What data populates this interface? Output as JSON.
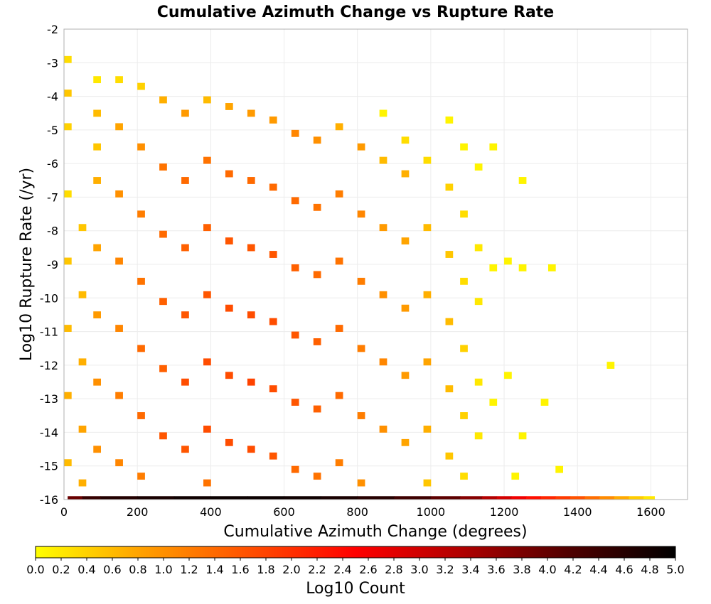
{
  "chart_data": {
    "type": "heatmap",
    "title": "Cumulative Azimuth Change vs Rupture Rate",
    "xlabel": "Cumulative Azimuth Change (degrees)",
    "ylabel": "Log10 Rupture Rate (/yr)",
    "colorbar_label": "Log10 Count",
    "xlim": [
      0,
      1700
    ],
    "ylim": [
      -16,
      -2
    ],
    "x_ticks": [
      0,
      200,
      400,
      600,
      800,
      1000,
      1200,
      1400,
      1600
    ],
    "y_ticks": [
      -16,
      -15,
      -14,
      -13,
      -12,
      -11,
      -10,
      -9,
      -8,
      -7,
      -6,
      -5,
      -4,
      -3,
      -2
    ],
    "colorbar_range": [
      0,
      5
    ],
    "colorbar_ticks": [
      "0.0",
      "0.2",
      "0.4",
      "0.6",
      "0.8",
      "1.0",
      "1.2",
      "1.4",
      "1.6",
      "1.8",
      "2.0",
      "2.2",
      "2.4",
      "2.6",
      "2.8",
      "3.0",
      "3.2",
      "3.4",
      "3.6",
      "3.8",
      "4.0",
      "4.2",
      "4.4",
      "4.6",
      "4.8",
      "5.0"
    ],
    "colorscale": [
      "#ffff00",
      "#ffa000",
      "#ff5000",
      "#ff0000",
      "#b00000",
      "#500000",
      "#000000"
    ],
    "grid": true,
    "bin_width_x": 20,
    "bin_height_y": 0.2,
    "cells": [
      {
        "x": 10,
        "y": -2.9,
        "v": 0.3
      },
      {
        "x": 10,
        "y": -3.9,
        "v": 0.5
      },
      {
        "x": 10,
        "y": -4.9,
        "v": 0.4
      },
      {
        "x": 10,
        "y": -6.9,
        "v": 0.3
      },
      {
        "x": 10,
        "y": -8.9,
        "v": 0.5
      },
      {
        "x": 10,
        "y": -10.9,
        "v": 0.6
      },
      {
        "x": 10,
        "y": -12.9,
        "v": 0.7
      },
      {
        "x": 10,
        "y": -14.9,
        "v": 0.6
      },
      {
        "x": 50,
        "y": -7.9,
        "v": 0.5
      },
      {
        "x": 50,
        "y": -9.9,
        "v": 0.6
      },
      {
        "x": 50,
        "y": -11.9,
        "v": 0.7
      },
      {
        "x": 50,
        "y": -13.9,
        "v": 0.8
      },
      {
        "x": 50,
        "y": -15.5,
        "v": 0.7
      },
      {
        "x": 90,
        "y": -3.5,
        "v": 0.2
      },
      {
        "x": 90,
        "y": -4.5,
        "v": 0.6
      },
      {
        "x": 90,
        "y": -5.5,
        "v": 0.5
      },
      {
        "x": 90,
        "y": -6.5,
        "v": 0.7
      },
      {
        "x": 90,
        "y": -8.5,
        "v": 0.8
      },
      {
        "x": 90,
        "y": -10.5,
        "v": 0.9
      },
      {
        "x": 90,
        "y": -12.5,
        "v": 1.0
      },
      {
        "x": 90,
        "y": -14.5,
        "v": 1.0
      },
      {
        "x": 150,
        "y": -3.5,
        "v": 0.3
      },
      {
        "x": 150,
        "y": -4.9,
        "v": 0.8
      },
      {
        "x": 150,
        "y": -6.9,
        "v": 1.0
      },
      {
        "x": 150,
        "y": -8.9,
        "v": 1.1
      },
      {
        "x": 150,
        "y": -10.9,
        "v": 1.1
      },
      {
        "x": 150,
        "y": -12.9,
        "v": 1.2
      },
      {
        "x": 150,
        "y": -14.9,
        "v": 1.1
      },
      {
        "x": 210,
        "y": -3.7,
        "v": 0.4
      },
      {
        "x": 210,
        "y": -5.5,
        "v": 1.0
      },
      {
        "x": 210,
        "y": -7.5,
        "v": 1.2
      },
      {
        "x": 210,
        "y": -9.5,
        "v": 1.3
      },
      {
        "x": 210,
        "y": -11.5,
        "v": 1.4
      },
      {
        "x": 210,
        "y": -13.5,
        "v": 1.4
      },
      {
        "x": 210,
        "y": -15.3,
        "v": 1.2
      },
      {
        "x": 270,
        "y": -4.1,
        "v": 0.7
      },
      {
        "x": 270,
        "y": -6.1,
        "v": 1.3
      },
      {
        "x": 270,
        "y": -8.1,
        "v": 1.4
      },
      {
        "x": 270,
        "y": -10.1,
        "v": 1.5
      },
      {
        "x": 270,
        "y": -12.1,
        "v": 1.5
      },
      {
        "x": 270,
        "y": -14.1,
        "v": 1.6
      },
      {
        "x": 330,
        "y": -4.5,
        "v": 0.9
      },
      {
        "x": 330,
        "y": -6.5,
        "v": 1.4
      },
      {
        "x": 330,
        "y": -8.5,
        "v": 1.5
      },
      {
        "x": 330,
        "y": -10.5,
        "v": 1.6
      },
      {
        "x": 330,
        "y": -12.5,
        "v": 1.7
      },
      {
        "x": 330,
        "y": -14.5,
        "v": 1.6
      },
      {
        "x": 390,
        "y": -4.1,
        "v": 0.6
      },
      {
        "x": 390,
        "y": -5.9,
        "v": 1.3
      },
      {
        "x": 390,
        "y": -7.9,
        "v": 1.5
      },
      {
        "x": 390,
        "y": -9.9,
        "v": 1.6
      },
      {
        "x": 390,
        "y": -11.9,
        "v": 1.7
      },
      {
        "x": 390,
        "y": -13.9,
        "v": 1.7
      },
      {
        "x": 390,
        "y": -15.5,
        "v": 1.3
      },
      {
        "x": 450,
        "y": -4.3,
        "v": 0.8
      },
      {
        "x": 450,
        "y": -6.3,
        "v": 1.4
      },
      {
        "x": 450,
        "y": -8.3,
        "v": 1.6
      },
      {
        "x": 450,
        "y": -10.3,
        "v": 1.7
      },
      {
        "x": 450,
        "y": -12.3,
        "v": 1.7
      },
      {
        "x": 450,
        "y": -14.3,
        "v": 1.7
      },
      {
        "x": 510,
        "y": -4.5,
        "v": 0.9
      },
      {
        "x": 510,
        "y": -6.5,
        "v": 1.4
      },
      {
        "x": 510,
        "y": -8.5,
        "v": 1.6
      },
      {
        "x": 510,
        "y": -10.5,
        "v": 1.7
      },
      {
        "x": 510,
        "y": -12.5,
        "v": 1.8
      },
      {
        "x": 510,
        "y": -14.5,
        "v": 1.7
      },
      {
        "x": 570,
        "y": -4.7,
        "v": 0.9
      },
      {
        "x": 570,
        "y": -6.7,
        "v": 1.4
      },
      {
        "x": 570,
        "y": -8.7,
        "v": 1.6
      },
      {
        "x": 570,
        "y": -10.7,
        "v": 1.7
      },
      {
        "x": 570,
        "y": -12.7,
        "v": 1.7
      },
      {
        "x": 570,
        "y": -14.7,
        "v": 1.6
      },
      {
        "x": 630,
        "y": -5.1,
        "v": 1.1
      },
      {
        "x": 630,
        "y": -7.1,
        "v": 1.4
      },
      {
        "x": 630,
        "y": -9.1,
        "v": 1.5
      },
      {
        "x": 630,
        "y": -11.1,
        "v": 1.6
      },
      {
        "x": 630,
        "y": -13.1,
        "v": 1.6
      },
      {
        "x": 630,
        "y": -15.1,
        "v": 1.4
      },
      {
        "x": 690,
        "y": -5.3,
        "v": 1.0
      },
      {
        "x": 690,
        "y": -7.3,
        "v": 1.3
      },
      {
        "x": 690,
        "y": -9.3,
        "v": 1.4
      },
      {
        "x": 690,
        "y": -11.3,
        "v": 1.5
      },
      {
        "x": 690,
        "y": -13.3,
        "v": 1.5
      },
      {
        "x": 690,
        "y": -15.3,
        "v": 1.3
      },
      {
        "x": 750,
        "y": -4.9,
        "v": 0.7
      },
      {
        "x": 750,
        "y": -6.9,
        "v": 1.2
      },
      {
        "x": 750,
        "y": -8.9,
        "v": 1.3
      },
      {
        "x": 750,
        "y": -10.9,
        "v": 1.4
      },
      {
        "x": 750,
        "y": -12.9,
        "v": 1.4
      },
      {
        "x": 750,
        "y": -14.9,
        "v": 1.2
      },
      {
        "x": 810,
        "y": -5.5,
        "v": 0.9
      },
      {
        "x": 810,
        "y": -7.5,
        "v": 1.1
      },
      {
        "x": 810,
        "y": -9.5,
        "v": 1.2
      },
      {
        "x": 810,
        "y": -11.5,
        "v": 1.2
      },
      {
        "x": 810,
        "y": -13.5,
        "v": 1.2
      },
      {
        "x": 810,
        "y": -15.5,
        "v": 1.0
      },
      {
        "x": 870,
        "y": -4.5,
        "v": 0.1
      },
      {
        "x": 870,
        "y": -5.9,
        "v": 0.6
      },
      {
        "x": 870,
        "y": -7.9,
        "v": 0.9
      },
      {
        "x": 870,
        "y": -9.9,
        "v": 1.0
      },
      {
        "x": 870,
        "y": -11.9,
        "v": 1.1
      },
      {
        "x": 870,
        "y": -13.9,
        "v": 1.0
      },
      {
        "x": 930,
        "y": -5.3,
        "v": 0.3
      },
      {
        "x": 930,
        "y": -6.3,
        "v": 0.7
      },
      {
        "x": 930,
        "y": -8.3,
        "v": 0.8
      },
      {
        "x": 930,
        "y": -10.3,
        "v": 0.9
      },
      {
        "x": 930,
        "y": -12.3,
        "v": 0.9
      },
      {
        "x": 930,
        "y": -14.3,
        "v": 0.8
      },
      {
        "x": 990,
        "y": -5.9,
        "v": 0.3
      },
      {
        "x": 990,
        "y": -7.9,
        "v": 0.6
      },
      {
        "x": 990,
        "y": -9.9,
        "v": 0.7
      },
      {
        "x": 990,
        "y": -11.9,
        "v": 0.8
      },
      {
        "x": 990,
        "y": -13.9,
        "v": 0.7
      },
      {
        "x": 990,
        "y": -15.5,
        "v": 0.5
      },
      {
        "x": 1050,
        "y": -4.7,
        "v": 0.1
      },
      {
        "x": 1050,
        "y": -6.7,
        "v": 0.4
      },
      {
        "x": 1050,
        "y": -8.7,
        "v": 0.5
      },
      {
        "x": 1050,
        "y": -10.7,
        "v": 0.6
      },
      {
        "x": 1050,
        "y": -12.7,
        "v": 0.6
      },
      {
        "x": 1050,
        "y": -14.7,
        "v": 0.5
      },
      {
        "x": 1090,
        "y": -5.5,
        "v": 0.1
      },
      {
        "x": 1090,
        "y": -7.5,
        "v": 0.3
      },
      {
        "x": 1090,
        "y": -9.5,
        "v": 0.3
      },
      {
        "x": 1090,
        "y": -11.5,
        "v": 0.4
      },
      {
        "x": 1090,
        "y": -13.5,
        "v": 0.4
      },
      {
        "x": 1090,
        "y": -15.3,
        "v": 0.3
      },
      {
        "x": 1130,
        "y": -6.1,
        "v": 0.1
      },
      {
        "x": 1130,
        "y": -8.5,
        "v": 0.2
      },
      {
        "x": 1130,
        "y": -10.1,
        "v": 0.2
      },
      {
        "x": 1130,
        "y": -12.5,
        "v": 0.2
      },
      {
        "x": 1130,
        "y": -14.1,
        "v": 0.2
      },
      {
        "x": 1170,
        "y": -5.5,
        "v": 0.1
      },
      {
        "x": 1170,
        "y": -9.1,
        "v": 0.1
      },
      {
        "x": 1170,
        "y": -13.1,
        "v": 0.1
      },
      {
        "x": 1210,
        "y": -8.9,
        "v": 0.1
      },
      {
        "x": 1210,
        "y": -12.3,
        "v": 0.1
      },
      {
        "x": 1230,
        "y": -15.3,
        "v": 0.1
      },
      {
        "x": 1250,
        "y": -6.5,
        "v": 0.1
      },
      {
        "x": 1250,
        "y": -9.1,
        "v": 0.1
      },
      {
        "x": 1250,
        "y": -14.1,
        "v": 0.1
      },
      {
        "x": 1310,
        "y": -13.1,
        "v": 0.1
      },
      {
        "x": 1330,
        "y": -9.1,
        "v": 0.1
      },
      {
        "x": 1350,
        "y": -15.1,
        "v": 0.1
      },
      {
        "x": 1490,
        "y": -12.0,
        "v": 0.1
      }
    ],
    "bottom_row": {
      "y": -16.0,
      "values": [
        {
          "x": 10,
          "v": 3.6
        },
        {
          "x": 50,
          "v": 4.3
        },
        {
          "x": 100,
          "v": 4.6
        },
        {
          "x": 200,
          "v": 4.7
        },
        {
          "x": 300,
          "v": 4.8
        },
        {
          "x": 400,
          "v": 4.9
        },
        {
          "x": 500,
          "v": 4.9
        },
        {
          "x": 600,
          "v": 4.9
        },
        {
          "x": 700,
          "v": 4.8
        },
        {
          "x": 800,
          "v": 4.7
        },
        {
          "x": 900,
          "v": 4.5
        },
        {
          "x": 1000,
          "v": 4.2
        },
        {
          "x": 1080,
          "v": 3.9
        },
        {
          "x": 1140,
          "v": 3.5
        },
        {
          "x": 1180,
          "v": 3.1
        },
        {
          "x": 1220,
          "v": 2.8
        },
        {
          "x": 1260,
          "v": 2.5
        },
        {
          "x": 1300,
          "v": 2.2
        },
        {
          "x": 1340,
          "v": 2.0
        },
        {
          "x": 1380,
          "v": 1.8
        },
        {
          "x": 1420,
          "v": 1.5
        },
        {
          "x": 1460,
          "v": 1.2
        },
        {
          "x": 1500,
          "v": 0.9
        },
        {
          "x": 1540,
          "v": 0.6
        },
        {
          "x": 1580,
          "v": 0.3
        },
        {
          "x": 1610,
          "v": 0.1
        }
      ]
    }
  }
}
